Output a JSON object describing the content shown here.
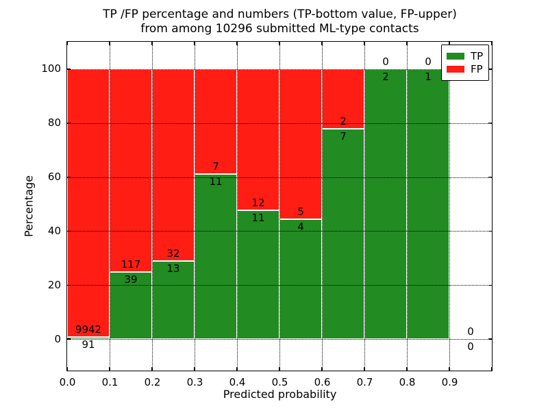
{
  "chart_data": {
    "type": "bar",
    "subtype": "stacked-percentage-histogram",
    "title_line1": "TP /FP percentage and numbers (TP-bottom value, FP-upper)",
    "title_line2": "from among 10296 submitted ML-type contacts",
    "xlabel": "Predicted probability",
    "ylabel": "Percentage",
    "xlim": [
      0.0,
      1.0
    ],
    "ylim": [
      -11.6,
      110.1
    ],
    "grid": true,
    "x_ticks": [
      "0.0",
      "0.1",
      "0.2",
      "0.3",
      "0.4",
      "0.5",
      "0.6",
      "0.7",
      "0.8",
      "0.9"
    ],
    "y_ticks": [
      "0",
      "20",
      "40",
      "60",
      "80",
      "100"
    ],
    "bins": [
      {
        "range": [
          0.0,
          0.1
        ],
        "tp": 91,
        "fp": 9942,
        "tp_percent": 0.9
      },
      {
        "range": [
          0.1,
          0.2
        ],
        "tp": 39,
        "fp": 117,
        "tp_percent": 25.0
      },
      {
        "range": [
          0.2,
          0.3
        ],
        "tp": 13,
        "fp": 32,
        "tp_percent": 28.9
      },
      {
        "range": [
          0.3,
          0.4
        ],
        "tp": 11,
        "fp": 7,
        "tp_percent": 61.1
      },
      {
        "range": [
          0.4,
          0.5
        ],
        "tp": 11,
        "fp": 12,
        "tp_percent": 47.8
      },
      {
        "range": [
          0.5,
          0.6
        ],
        "tp": 4,
        "fp": 5,
        "tp_percent": 44.4
      },
      {
        "range": [
          0.6,
          0.7
        ],
        "tp": 7,
        "fp": 2,
        "tp_percent": 77.8
      },
      {
        "range": [
          0.7,
          0.8
        ],
        "tp": 2,
        "fp": 0,
        "tp_percent": 100.0
      },
      {
        "range": [
          0.8,
          0.9
        ],
        "tp": 1,
        "fp": 0,
        "tp_percent": 100.0
      },
      {
        "range": [
          0.9,
          1.0
        ],
        "tp": 0,
        "fp": 0,
        "tp_percent": null
      }
    ],
    "legend": {
      "position": "upper right",
      "entries": [
        {
          "label": "TP",
          "color": "#228b22"
        },
        {
          "label": "FP",
          "color": "#ff1d14"
        }
      ]
    }
  },
  "colors": {
    "tp": "#228b22",
    "fp": "#ff1d14",
    "background": "#ffffff",
    "axis": "#000000",
    "bar_edge": "#ffffff",
    "grid": "#000000"
  }
}
